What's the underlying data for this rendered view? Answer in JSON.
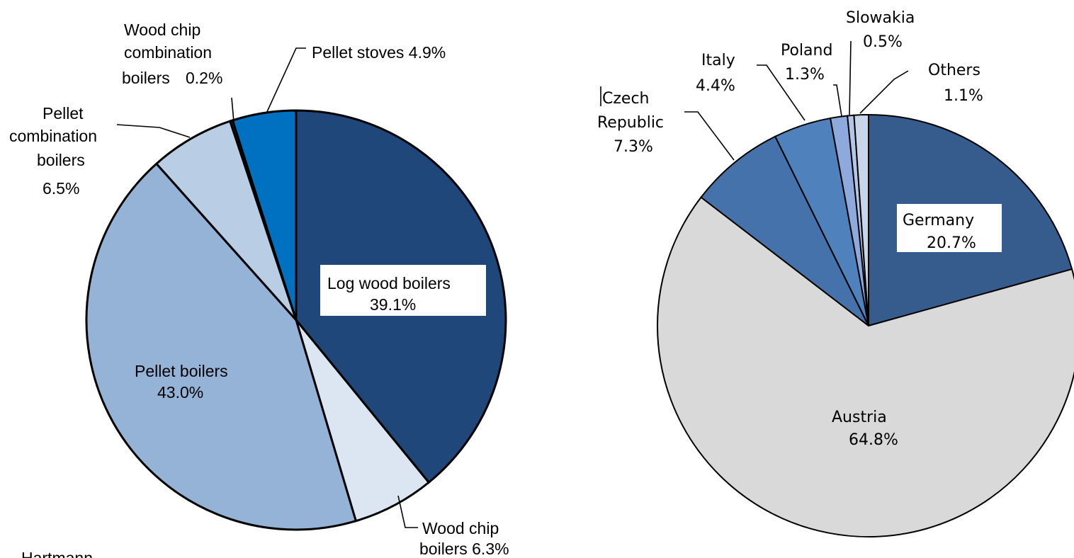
{
  "chart_data": [
    {
      "type": "pie",
      "slices": [
        {
          "name": "Log wood boilers",
          "label": "Log wood boilers",
          "pct_label": "39.1%",
          "value": 39.1,
          "color": "#20477A"
        },
        {
          "name": "Wood chip boilers",
          "label": "Wood chip",
          "label2": "boilers 6.3%",
          "value": 6.3,
          "color": "#DCE6F2"
        },
        {
          "name": "Pellet boilers",
          "label": "Pellet boilers",
          "pct_label": "43.0%",
          "value": 43.0,
          "color": "#95B3D7"
        },
        {
          "name": "Pellet combination boilers",
          "label": "Pellet",
          "label2": "combination",
          "label3": "boilers",
          "pct_label": "6.5%",
          "value": 6.5,
          "color": "#B9CDE5"
        },
        {
          "name": "Wood chip combination boilers",
          "label": "Wood chip",
          "label2": "combination",
          "label3": "boilers",
          "pct_label": "0.2%",
          "value": 0.2,
          "color": "#1F3864"
        },
        {
          "name": "Pellet stoves",
          "label": "Pellet stoves 4.9%",
          "value": 4.9,
          "color": "#0070C0"
        }
      ]
    },
    {
      "type": "pie",
      "slices": [
        {
          "name": "Germany",
          "label": "Germany",
          "pct_label": "20.7%",
          "value": 20.7,
          "color": "#365C8D"
        },
        {
          "name": "Austria",
          "label": "Austria",
          "pct_label": "64.8%",
          "value": 64.8,
          "color": "#D9D9D9"
        },
        {
          "name": "Czech Republic",
          "label": "Czech",
          "label2": "Republic",
          "pct_label": "7.3%",
          "value": 7.3,
          "color": "#4572AA"
        },
        {
          "name": "Italy",
          "label": "Italy",
          "pct_label": "4.4%",
          "value": 4.4,
          "color": "#4F81BD"
        },
        {
          "name": "Poland",
          "label": "Poland",
          "pct_label": "1.3%",
          "value": 1.3,
          "color": "#8EA9DB"
        },
        {
          "name": "Slowakia",
          "label": "Slowakia",
          "pct_label": "0.5%",
          "value": 0.5,
          "color": "#B4C6E7"
        },
        {
          "name": "Others",
          "label": "Others",
          "pct_label": "1.1%",
          "value": 1.1,
          "color": "#C9D6EA"
        }
      ]
    }
  ],
  "footer_text": "Hartmann"
}
